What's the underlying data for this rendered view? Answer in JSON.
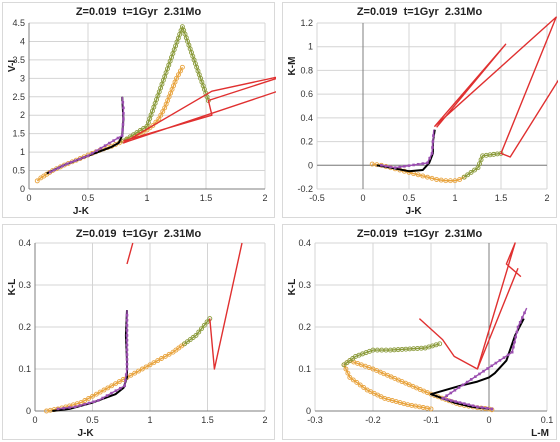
{
  "chart_data": [
    {
      "type": "line",
      "title": "Z=0.019  t=1Gyr  2.31Mo",
      "xlabel": "J-K",
      "ylabel": "V-I",
      "xlim": [
        0,
        2
      ],
      "ylim": [
        0,
        4.5
      ],
      "xticks": [
        "0",
        "0.5",
        "1",
        "1.5",
        "2"
      ],
      "yticks": [
        "0",
        "0.5",
        "1",
        "1.5",
        "2",
        "2.5",
        "3",
        "3.5",
        "4",
        "4.5"
      ],
      "series": [
        {
          "color": "#e8a33d",
          "marker": "circle",
          "x": [
            0.07,
            0.1,
            0.15,
            0.2,
            0.3,
            0.4,
            0.5,
            0.6,
            0.7,
            0.8,
            0.9,
            1.0,
            1.05,
            1.1,
            1.15,
            1.2,
            1.25,
            1.3
          ],
          "y": [
            0.22,
            0.3,
            0.4,
            0.5,
            0.65,
            0.78,
            0.92,
            1.05,
            1.16,
            1.3,
            1.42,
            1.6,
            1.72,
            1.9,
            2.2,
            2.6,
            3.0,
            3.3
          ]
        },
        {
          "color": "#000000",
          "marker": "none",
          "x": [
            0.15,
            0.3,
            0.5,
            0.7,
            0.76,
            0.79,
            0.8,
            0.79
          ],
          "y": [
            0.42,
            0.65,
            0.9,
            1.14,
            1.25,
            1.45,
            1.9,
            2.5
          ]
        },
        {
          "color": "#9b4fb0",
          "marker": "square",
          "x": [
            0.18,
            0.32,
            0.5,
            0.79,
            0.8,
            0.8,
            0.79
          ],
          "y": [
            0.46,
            0.68,
            0.9,
            1.45,
            1.9,
            2.2,
            2.5
          ]
        },
        {
          "color": "#8a9a3a",
          "marker": "circle",
          "x": [
            0.8,
            1.0,
            1.3,
            1.52
          ],
          "y": [
            1.3,
            1.7,
            4.4,
            2.4
          ]
        },
        {
          "color": "#e03030",
          "marker": "none",
          "x": [
            0.8,
            1.55,
            1.52,
            2.2,
            1.55,
            0.8,
            2.2
          ],
          "y": [
            1.3,
            2.0,
            2.4,
            3.1,
            2.65,
            1.25,
            2.75
          ]
        }
      ]
    },
    {
      "type": "line",
      "title": "Z=0.019  t=1Gyr  2.31Mo",
      "xlabel": "J-K",
      "ylabel": "K-M",
      "xlim": [
        -0.5,
        2
      ],
      "ylim": [
        -0.2,
        1.2
      ],
      "xticks": [
        "-0.5",
        "0",
        "0.5",
        "1",
        "1.5",
        "2"
      ],
      "yticks": [
        "-0.2",
        "0",
        "0.2",
        "0.4",
        "0.6",
        "0.8",
        "1",
        "1.2"
      ],
      "series": [
        {
          "color": "#e8a33d",
          "marker": "circle",
          "x": [
            0.1,
            0.2,
            0.3,
            0.4,
            0.5,
            0.6,
            0.7,
            0.8,
            0.9,
            1.0,
            1.05,
            1.1
          ],
          "y": [
            0.01,
            0.0,
            -0.02,
            -0.04,
            -0.06,
            -0.08,
            -0.1,
            -0.12,
            -0.13,
            -0.13,
            -0.12,
            -0.1
          ]
        },
        {
          "color": "#000000",
          "marker": "none",
          "x": [
            0.15,
            0.3,
            0.5,
            0.65,
            0.72,
            0.76,
            0.76,
            0.78
          ],
          "y": [
            0.0,
            -0.02,
            -0.05,
            -0.04,
            0.02,
            0.1,
            0.2,
            0.3
          ]
        },
        {
          "color": "#9b4fb0",
          "marker": "square",
          "x": [
            0.2,
            0.35,
            0.7,
            0.75,
            0.76,
            0.77
          ],
          "y": [
            0.0,
            -0.02,
            0.02,
            0.1,
            0.2,
            0.3
          ]
        },
        {
          "color": "#8a9a3a",
          "marker": "circle",
          "x": [
            1.1,
            1.25,
            1.3,
            1.5
          ],
          "y": [
            -0.1,
            -0.02,
            0.08,
            0.1
          ]
        },
        {
          "color": "#e03030",
          "marker": "none",
          "x": [
            0.8,
            1.55,
            0.78,
            2.1,
            1.5,
            1.6,
            2.15
          ],
          "y": [
            0.32,
            1.02,
            0.33,
            1.25,
            0.1,
            0.07,
            0.75
          ]
        }
      ]
    },
    {
      "type": "line",
      "title": "Z=0.019  t=1Gyr  2.31Mo",
      "xlabel": "J-K",
      "ylabel": "K-L",
      "xlim": [
        0,
        2
      ],
      "ylim": [
        0,
        0.4
      ],
      "xticks": [
        "0",
        "0.5",
        "1",
        "1.5",
        "2"
      ],
      "yticks": [
        "0",
        "0.1",
        "0.2",
        "0.3",
        "0.4"
      ],
      "series": [
        {
          "color": "#e8a33d",
          "marker": "circle",
          "x": [
            0.1,
            0.2,
            0.3,
            0.4,
            0.5,
            0.6,
            0.7,
            0.8,
            0.9,
            1.0,
            1.1,
            1.2,
            1.3
          ],
          "y": [
            0.0,
            0.005,
            0.012,
            0.02,
            0.035,
            0.05,
            0.065,
            0.08,
            0.095,
            0.11,
            0.125,
            0.14,
            0.16
          ]
        },
        {
          "color": "#000000",
          "marker": "none",
          "x": [
            0.15,
            0.3,
            0.5,
            0.7,
            0.77,
            0.8,
            0.8,
            0.79,
            0.8
          ],
          "y": [
            0.0,
            0.005,
            0.02,
            0.04,
            0.055,
            0.08,
            0.12,
            0.18,
            0.24
          ]
        },
        {
          "color": "#9b4fb0",
          "marker": "square",
          "x": [
            0.2,
            0.35,
            0.55,
            0.78,
            0.8,
            0.8,
            0.8
          ],
          "y": [
            0.005,
            0.01,
            0.025,
            0.06,
            0.1,
            0.18,
            0.24
          ]
        },
        {
          "color": "#8a9a3a",
          "marker": "circle",
          "x": [
            1.3,
            1.4,
            1.52
          ],
          "y": [
            0.16,
            0.18,
            0.22
          ]
        },
        {
          "color": "#e03030",
          "marker": "none",
          "x": [
            1.52,
            1.56,
            1.8
          ],
          "y": [
            0.22,
            0.1,
            0.4
          ]
        },
        {
          "color": "#e03030",
          "marker": "none",
          "x": [
            0.8,
            0.85
          ],
          "y": [
            0.35,
            0.4
          ]
        }
      ]
    },
    {
      "type": "line",
      "title": "Z=0.019  t=1Gyr  2.31Mo",
      "xlabel": "L-M",
      "ylabel": "K-L",
      "xlim": [
        -0.3,
        0.1
      ],
      "ylim": [
        0,
        0.4
      ],
      "xticks": [
        "-0.3",
        "-0.2",
        "-0.1",
        "0",
        "0.1"
      ],
      "yticks": [
        "0",
        "0.1",
        "0.2",
        "0.3",
        "0.4"
      ],
      "series": [
        {
          "color": "#e8a33d",
          "marker": "circle",
          "x": [
            -0.1,
            -0.14,
            -0.18,
            -0.21,
            -0.24,
            -0.25,
            -0.24,
            -0.2,
            -0.15,
            -0.1,
            -0.05,
            -0.02,
            0.0,
            0.005
          ],
          "y": [
            0.005,
            0.015,
            0.03,
            0.05,
            0.08,
            0.11,
            0.12,
            0.1,
            0.07,
            0.04,
            0.015,
            0.008,
            0.005,
            0.003
          ]
        },
        {
          "color": "#8a9a3a",
          "marker": "circle",
          "x": [
            -0.25,
            -0.23,
            -0.2,
            -0.17,
            -0.11,
            -0.085
          ],
          "y": [
            0.11,
            0.13,
            0.145,
            0.145,
            0.15,
            0.16
          ]
        },
        {
          "color": "#000000",
          "marker": "none",
          "x": [
            0.0,
            -0.03,
            -0.06,
            -0.1,
            -0.05,
            -0.02,
            0.0,
            0.01,
            0.03,
            0.045,
            0.06
          ],
          "y": [
            0.005,
            0.01,
            0.02,
            0.04,
            0.06,
            0.07,
            0.08,
            0.09,
            0.12,
            0.18,
            0.22
          ]
        },
        {
          "color": "#9b4fb0",
          "marker": "square",
          "x": [
            0.005,
            -0.02,
            -0.05,
            -0.08,
            0.04,
            0.05,
            0.065
          ],
          "y": [
            0.005,
            0.01,
            0.02,
            0.03,
            0.14,
            0.2,
            0.245
          ]
        },
        {
          "color": "#e03030",
          "marker": "none",
          "x": [
            -0.12,
            -0.08,
            -0.06,
            -0.02,
            0.045,
            0.03,
            0.055
          ],
          "y": [
            0.22,
            0.17,
            0.13,
            0.1,
            0.4,
            0.35,
            0.32
          ]
        },
        {
          "color": "#e03030",
          "marker": "none",
          "x": [
            -0.02,
            0.05
          ],
          "y": [
            0.1,
            0.34
          ]
        }
      ]
    }
  ]
}
